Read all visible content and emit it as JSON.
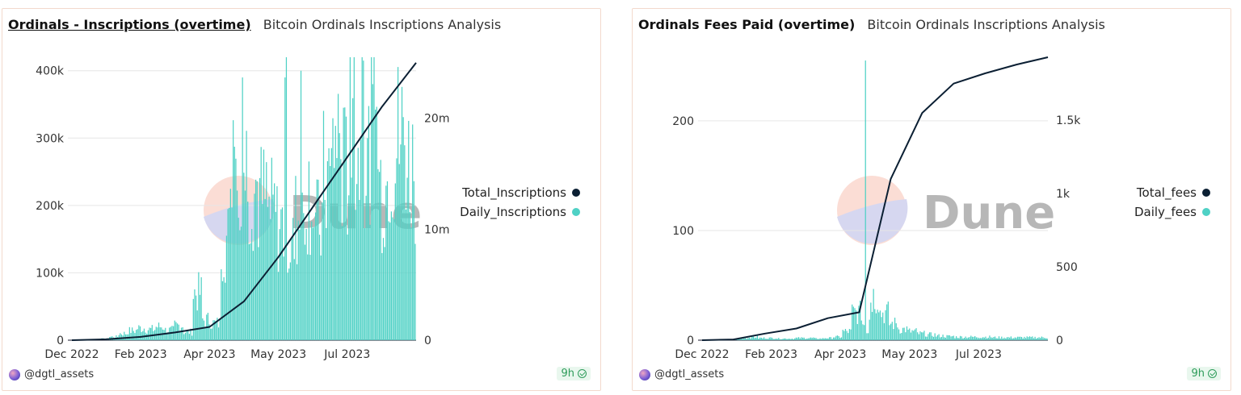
{
  "panels": [
    {
      "title": "Ordinals - Inscriptions (overtime)",
      "subtitle": "Bitcoin Ordinals Inscriptions Analysis",
      "user": "@dgtl_assets",
      "badge": "9h",
      "legend": [
        {
          "label": "Total_Inscriptions",
          "color": "#0b1f33"
        },
        {
          "label": "Daily_Inscriptions",
          "color": "#4fd1c5"
        }
      ]
    },
    {
      "title": "Ordinals Fees Paid (overtime)",
      "subtitle": "Bitcoin Ordinals Inscriptions Analysis",
      "user": "@dgtl_assets",
      "badge": "9h",
      "legend": [
        {
          "label": "Total_fees",
          "color": "#0b1f33"
        },
        {
          "label": "Daily_fees",
          "color": "#4fd1c5"
        }
      ]
    }
  ],
  "chart_data": [
    {
      "type": "bar",
      "title": "Ordinals - Inscriptions (overtime)",
      "x_ticks": [
        "Dec 2022",
        "Feb 2023",
        "Apr 2023",
        "May 2023",
        "Jul 2023"
      ],
      "y_left_ticks": [
        "0",
        "100k",
        "200k",
        "300k",
        "400k"
      ],
      "y_left_range": [
        0,
        420000
      ],
      "y_right_ticks": [
        "0",
        "10m",
        "20m"
      ],
      "y_right_range": [
        0,
        25500000
      ],
      "grid": true,
      "legend_position": "right",
      "series": [
        {
          "name": "Daily_Inscriptions",
          "axis": "left",
          "type": "bar",
          "color": "#4fd1c5",
          "weekly_values": [
            0,
            0,
            500,
            2000,
            5000,
            10000,
            14000,
            18000,
            16000,
            20000,
            15000,
            22000,
            12000,
            70000,
            30000,
            25000,
            150000,
            330000,
            260000,
            230000,
            210000,
            190000,
            170000,
            140000,
            180000,
            220000,
            170000,
            240000,
            300000,
            250000,
            280000,
            260000,
            310000,
            230000,
            280000,
            300000,
            260000
          ],
          "peak_values": [
            400000,
            420000,
            415000,
            390000
          ]
        },
        {
          "name": "Total_Inscriptions",
          "axis": "right",
          "type": "line",
          "color": "#0b1f33",
          "points": [
            {
              "x": "Dec 2022",
              "y": 0
            },
            {
              "x": "Jan 2023",
              "y": 80000
            },
            {
              "x": "Feb 2023",
              "y": 300000
            },
            {
              "x": "Mar 2023",
              "y": 700000
            },
            {
              "x": "Apr 2023",
              "y": 1200000
            },
            {
              "x": "Apr 2023 mid",
              "y": 3500000
            },
            {
              "x": "May 2023",
              "y": 7500000
            },
            {
              "x": "Jun 2023",
              "y": 12000000
            },
            {
              "x": "Jul 2023",
              "y": 16500000
            },
            {
              "x": "Aug 2023",
              "y": 21000000
            },
            {
              "x": "Sep 2023",
              "y": 25000000
            }
          ]
        }
      ]
    },
    {
      "type": "bar",
      "title": "Ordinals Fees Paid (overtime)",
      "x_ticks": [
        "Dec 2022",
        "Feb 2023",
        "Apr 2023",
        "May 2023",
        "Jul 2023"
      ],
      "y_left_ticks": [
        "0",
        "100",
        "200"
      ],
      "y_left_range": [
        0,
        258
      ],
      "y_right_ticks": [
        "0",
        "500",
        "1k",
        "1.5k"
      ],
      "y_right_range": [
        0,
        1930
      ],
      "grid": true,
      "legend_position": "right",
      "series": [
        {
          "name": "Daily_fees",
          "axis": "left",
          "type": "bar",
          "color": "#4fd1c5",
          "weekly_values": [
            0,
            0,
            0.5,
            1,
            2,
            3,
            2,
            2,
            1.5,
            1.5,
            2,
            2,
            1.5,
            2,
            3,
            8,
            25,
            255,
            40,
            25,
            15,
            10,
            8,
            6,
            5,
            4,
            3.5,
            3,
            3,
            3,
            3,
            2.5,
            2.5,
            2.5,
            2.5,
            2.5,
            2.5
          ]
        },
        {
          "name": "Total_fees",
          "axis": "right",
          "type": "line",
          "color": "#0b1f33",
          "points": [
            {
              "x": "Dec 2022",
              "y": 0
            },
            {
              "x": "Jan 2023",
              "y": 5
            },
            {
              "x": "Feb 2023",
              "y": 45
            },
            {
              "x": "Mar 2023",
              "y": 80
            },
            {
              "x": "Apr 2023",
              "y": 150
            },
            {
              "x": "Apr 2023 late",
              "y": 190
            },
            {
              "x": "May 2023 early",
              "y": 1100
            },
            {
              "x": "May 2023",
              "y": 1550
            },
            {
              "x": "Jun 2023",
              "y": 1750
            },
            {
              "x": "Jul 2023",
              "y": 1820
            },
            {
              "x": "Aug 2023",
              "y": 1880
            },
            {
              "x": "Sep 2023",
              "y": 1930
            }
          ]
        }
      ]
    }
  ]
}
